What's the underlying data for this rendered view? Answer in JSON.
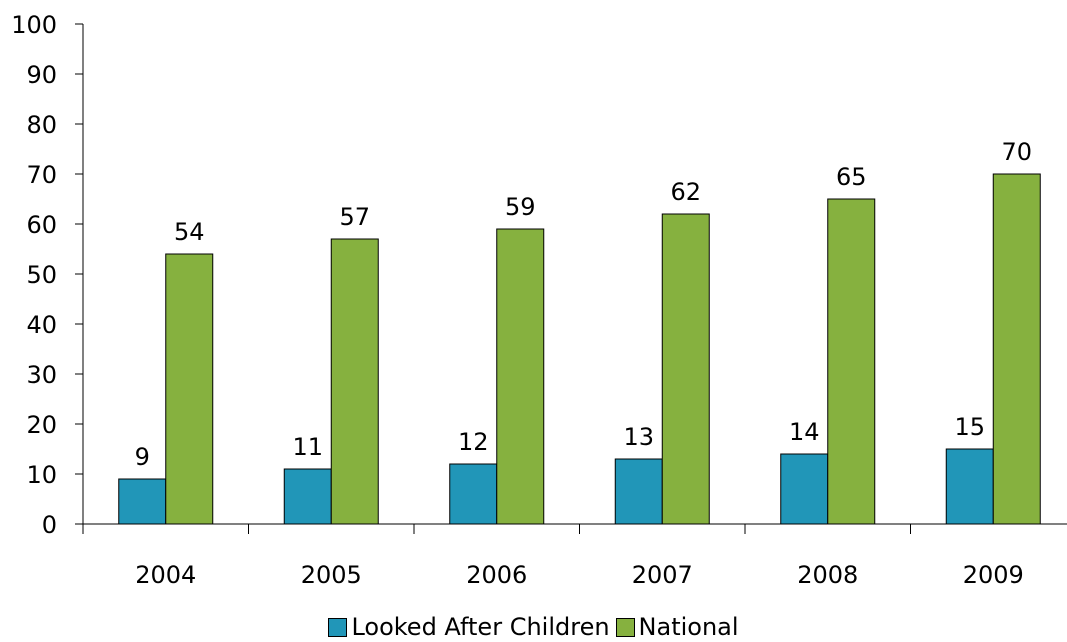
{
  "chart_data": {
    "type": "bar",
    "categories": [
      "2004",
      "2005",
      "2006",
      "2007",
      "2008",
      "2009"
    ],
    "series": [
      {
        "name": "Looked After Children",
        "values": [
          9,
          11,
          12,
          13,
          14,
          15
        ],
        "color": "#2196B8"
      },
      {
        "name": "National",
        "values": [
          54,
          57,
          59,
          62,
          65,
          70
        ],
        "color": "#86B13F"
      }
    ],
    "ylim": [
      0,
      100
    ],
    "yticks": [
      0,
      10,
      20,
      30,
      40,
      50,
      60,
      70,
      80,
      90,
      100
    ],
    "grid": false,
    "legend_position": "bottom",
    "title": "",
    "xlabel": "",
    "ylabel": ""
  },
  "legend": {
    "items": [
      {
        "label": "Looked After Children",
        "color": "#2196B8"
      },
      {
        "label": "National",
        "color": "#86B13F"
      }
    ]
  }
}
